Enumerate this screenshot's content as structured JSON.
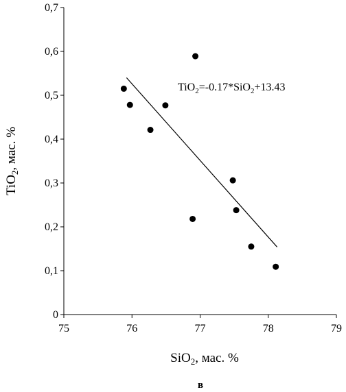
{
  "chart_data": {
    "type": "scatter",
    "xlabel_parts": [
      "SiO",
      "2",
      ", мас. %"
    ],
    "ylabel_parts": [
      "TiO",
      "2",
      ", мас. %"
    ],
    "panel_label": "в",
    "xlim": [
      75,
      79
    ],
    "ylim": [
      0,
      0.7
    ],
    "x_ticks": [
      75,
      76,
      77,
      78,
      79
    ],
    "x_tick_labels": [
      "75",
      "76",
      "77",
      "78",
      "79"
    ],
    "y_ticks": [
      0,
      0.1,
      0.2,
      0.3,
      0.4,
      0.5,
      0.6,
      0.7
    ],
    "y_tick_labels": [
      "0",
      "0,1",
      "0,2",
      "0,3",
      "0,4",
      "0,5",
      "0,6",
      "0,7"
    ],
    "grid": false,
    "legend": "none",
    "points": [
      {
        "x": 75.88,
        "y": 0.515
      },
      {
        "x": 75.97,
        "y": 0.478
      },
      {
        "x": 76.27,
        "y": 0.421
      },
      {
        "x": 76.49,
        "y": 0.477
      },
      {
        "x": 76.89,
        "y": 0.218
      },
      {
        "x": 76.93,
        "y": 0.589
      },
      {
        "x": 77.48,
        "y": 0.306
      },
      {
        "x": 77.53,
        "y": 0.238
      },
      {
        "x": 77.75,
        "y": 0.155
      },
      {
        "x": 78.11,
        "y": 0.109
      }
    ],
    "trendline": {
      "x": [
        75.92,
        78.13
      ],
      "y": [
        0.54,
        0.154
      ]
    },
    "equation_parts": [
      "TiO",
      "2",
      "=-0.17*SiO",
      "2",
      "+13.43"
    ],
    "point_color": "#000000",
    "line_color": "#000000"
  }
}
